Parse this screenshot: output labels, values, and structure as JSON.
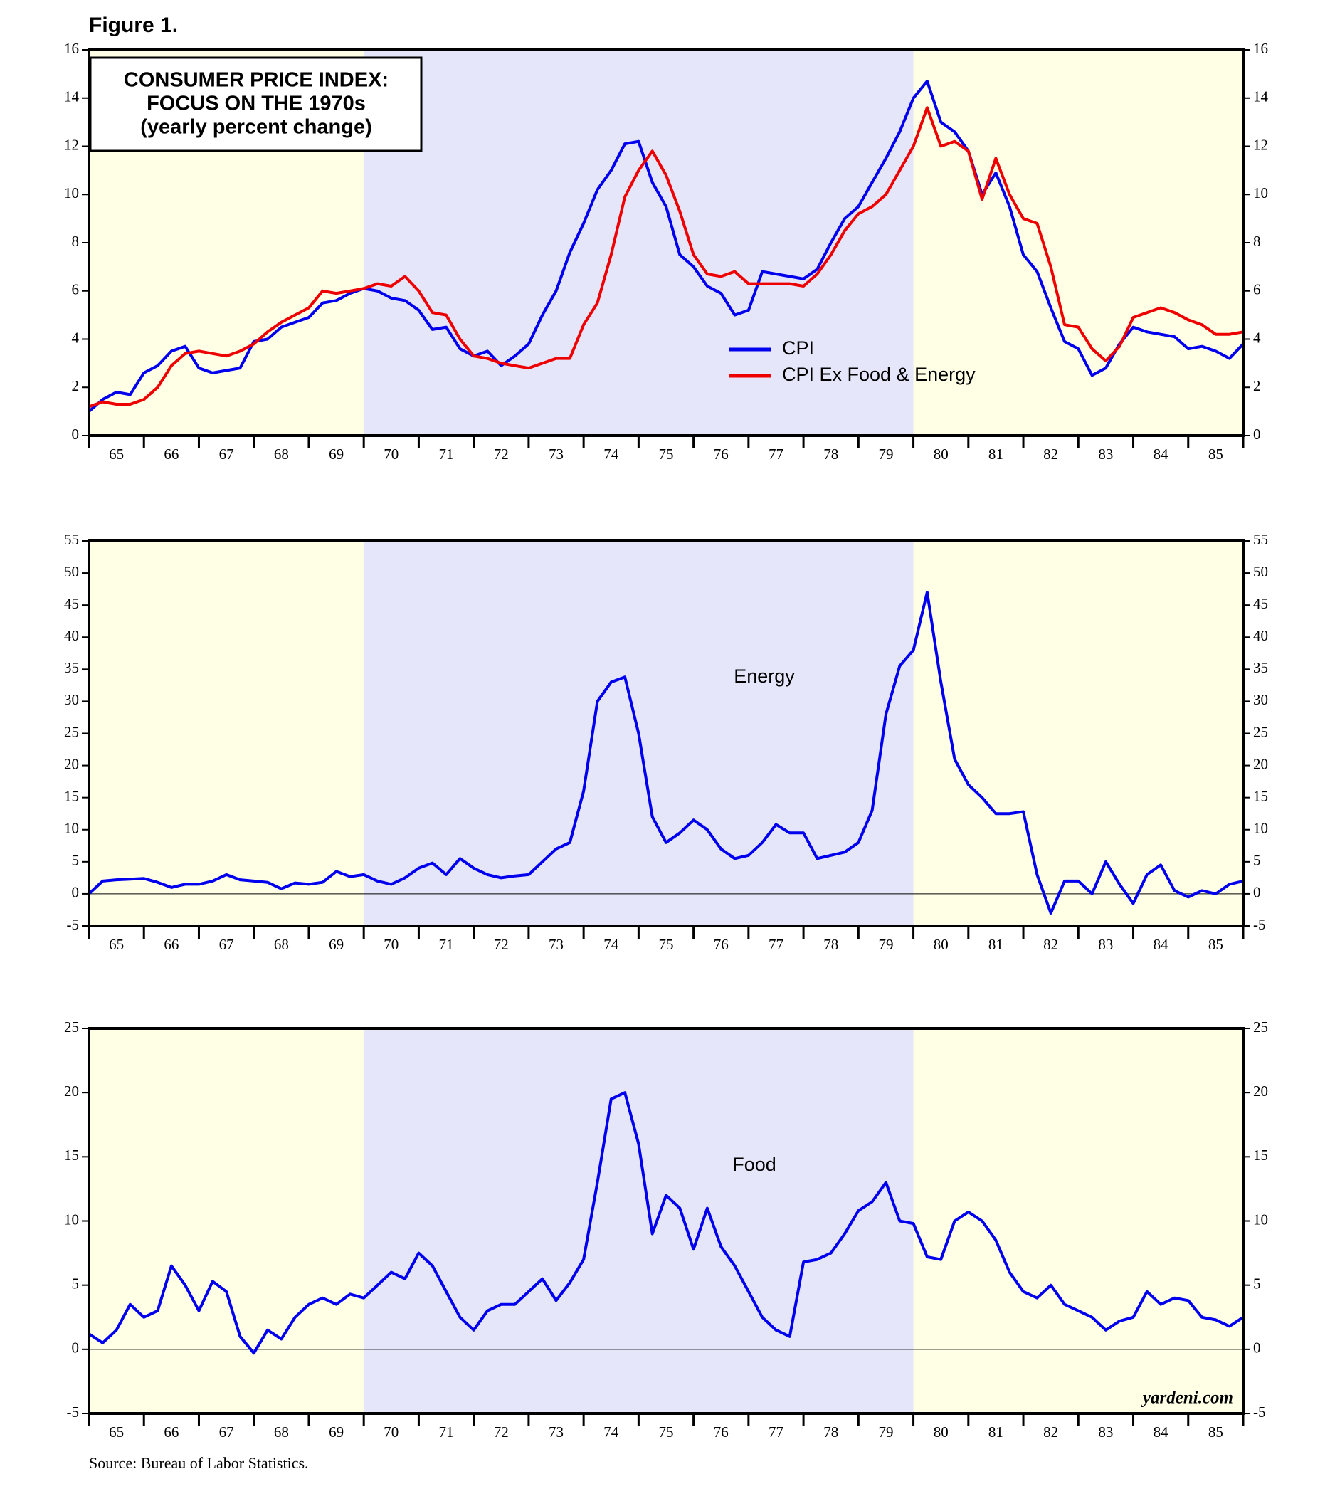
{
  "figure_label": "Figure 1.",
  "source": "Source: Bureau of Labor Statistics.",
  "watermark": "yardeni.com",
  "chart_data": [
    {
      "type": "line",
      "title": [
        "CONSUMER PRICE INDEX:",
        "FOCUS ON THE 1970s",
        "(yearly percent change)"
      ],
      "background_color": "#ffffe6",
      "shaded_spans": [
        {
          "from": 1970,
          "to": 1980,
          "color": "#e6e6fa"
        }
      ],
      "legend": "center-right",
      "xlim": [
        1965,
        1986
      ],
      "xticks": [
        {
          "value": 1965.5,
          "label": "65"
        },
        {
          "value": 1966.5,
          "label": "66"
        },
        {
          "value": 1967.5,
          "label": "67"
        },
        {
          "value": 1968.5,
          "label": "68"
        },
        {
          "value": 1969.5,
          "label": "69"
        },
        {
          "value": 1970.5,
          "label": "70"
        },
        {
          "value": 1971.5,
          "label": "71"
        },
        {
          "value": 1972.5,
          "label": "72"
        },
        {
          "value": 1973.5,
          "label": "73"
        },
        {
          "value": 1974.5,
          "label": "74"
        },
        {
          "value": 1975.5,
          "label": "75"
        },
        {
          "value": 1976.5,
          "label": "76"
        },
        {
          "value": 1977.5,
          "label": "77"
        },
        {
          "value": 1978.5,
          "label": "78"
        },
        {
          "value": 1979.5,
          "label": "79"
        },
        {
          "value": 1980.5,
          "label": "80"
        },
        {
          "value": 1981.5,
          "label": "81"
        },
        {
          "value": 1982.5,
          "label": "82"
        },
        {
          "value": 1983.5,
          "label": "83"
        },
        {
          "value": 1984.5,
          "label": "84"
        },
        {
          "value": 1985.5,
          "label": "85"
        }
      ],
      "ylim": [
        0,
        16
      ],
      "yticks": [
        0,
        2,
        4,
        6,
        8,
        10,
        12,
        14,
        16
      ],
      "x": [
        1965,
        1965.25,
        1965.5,
        1965.75,
        1966,
        1966.25,
        1966.5,
        1966.75,
        1967,
        1967.25,
        1967.5,
        1967.75,
        1968,
        1968.25,
        1968.5,
        1968.75,
        1969,
        1969.25,
        1969.5,
        1969.75,
        1970,
        1970.25,
        1970.5,
        1970.75,
        1971,
        1971.25,
        1971.5,
        1971.75,
        1972,
        1972.25,
        1972.5,
        1972.75,
        1973,
        1973.25,
        1973.5,
        1973.75,
        1974,
        1974.25,
        1974.5,
        1974.75,
        1975,
        1975.25,
        1975.5,
        1975.75,
        1976,
        1976.25,
        1976.5,
        1976.75,
        1977,
        1977.25,
        1977.5,
        1977.75,
        1978,
        1978.25,
        1978.5,
        1978.75,
        1979,
        1979.25,
        1979.5,
        1979.75,
        1980,
        1980.25,
        1980.5,
        1980.75,
        1981,
        1981.25,
        1981.5,
        1981.75,
        1982,
        1982.25,
        1982.5,
        1982.75,
        1983,
        1983.25,
        1983.5,
        1983.75,
        1984,
        1984.25,
        1984.5,
        1984.75,
        1985,
        1985.25,
        1985.5,
        1985.75,
        1986
      ],
      "series": [
        {
          "name": "CPI",
          "color": "#0000ee",
          "values": [
            1.0,
            1.5,
            1.8,
            1.7,
            2.6,
            2.9,
            3.5,
            3.7,
            2.8,
            2.6,
            2.7,
            2.8,
            3.9,
            4.0,
            4.5,
            4.7,
            4.9,
            5.5,
            5.6,
            5.9,
            6.1,
            6.0,
            5.7,
            5.6,
            5.2,
            4.4,
            4.5,
            3.6,
            3.3,
            3.5,
            2.9,
            3.3,
            3.8,
            5.0,
            6.0,
            7.6,
            8.8,
            10.2,
            11.0,
            12.1,
            12.2,
            10.5,
            9.5,
            7.5,
            7.0,
            6.2,
            5.9,
            5.0,
            5.2,
            6.8,
            6.7,
            6.6,
            6.5,
            6.9,
            8.0,
            9.0,
            9.5,
            10.5,
            11.5,
            12.6,
            14.0,
            14.7,
            13.0,
            12.6,
            11.8,
            10.0,
            10.9,
            9.5,
            7.5,
            6.8,
            5.3,
            3.9,
            3.6,
            2.5,
            2.8,
            3.8,
            4.5,
            4.3,
            4.2,
            4.1,
            3.6,
            3.7,
            3.5,
            3.2,
            3.8
          ]
        },
        {
          "name": "CPI Ex Food & Energy",
          "color": "#ee0000",
          "values": [
            1.2,
            1.4,
            1.3,
            1.3,
            1.5,
            2.0,
            2.9,
            3.4,
            3.5,
            3.4,
            3.3,
            3.5,
            3.8,
            4.3,
            4.7,
            5.0,
            5.3,
            6.0,
            5.9,
            6.0,
            6.1,
            6.3,
            6.2,
            6.6,
            6.0,
            5.1,
            5.0,
            4.0,
            3.3,
            3.2,
            3.0,
            2.9,
            2.8,
            3.0,
            3.2,
            3.2,
            4.6,
            5.5,
            7.5,
            9.9,
            11.0,
            11.8,
            10.8,
            9.3,
            7.5,
            6.7,
            6.6,
            6.8,
            6.3,
            6.3,
            6.3,
            6.3,
            6.2,
            6.7,
            7.5,
            8.5,
            9.2,
            9.5,
            10.0,
            11.0,
            12.0,
            13.6,
            12.0,
            12.2,
            11.8,
            9.8,
            11.5,
            10.0,
            9.0,
            8.8,
            7.0,
            4.6,
            4.5,
            3.6,
            3.1,
            3.7,
            4.9,
            5.1,
            5.3,
            5.1,
            4.8,
            4.6,
            4.2,
            4.2,
            4.3
          ]
        }
      ]
    },
    {
      "type": "line",
      "annotation": "Energy",
      "background_color": "#ffffe6",
      "shaded_spans": [
        {
          "from": 1970,
          "to": 1980,
          "color": "#e6e6fa"
        }
      ],
      "zero_line": true,
      "xlim": [
        1965,
        1986
      ],
      "xticks": [
        {
          "value": 1965.5,
          "label": "65"
        },
        {
          "value": 1966.5,
          "label": "66"
        },
        {
          "value": 1967.5,
          "label": "67"
        },
        {
          "value": 1968.5,
          "label": "68"
        },
        {
          "value": 1969.5,
          "label": "69"
        },
        {
          "value": 1970.5,
          "label": "70"
        },
        {
          "value": 1971.5,
          "label": "71"
        },
        {
          "value": 1972.5,
          "label": "72"
        },
        {
          "value": 1973.5,
          "label": "73"
        },
        {
          "value": 1974.5,
          "label": "74"
        },
        {
          "value": 1975.5,
          "label": "75"
        },
        {
          "value": 1976.5,
          "label": "76"
        },
        {
          "value": 1977.5,
          "label": "77"
        },
        {
          "value": 1978.5,
          "label": "78"
        },
        {
          "value": 1979.5,
          "label": "79"
        },
        {
          "value": 1980.5,
          "label": "80"
        },
        {
          "value": 1981.5,
          "label": "81"
        },
        {
          "value": 1982.5,
          "label": "82"
        },
        {
          "value": 1983.5,
          "label": "83"
        },
        {
          "value": 1984.5,
          "label": "84"
        },
        {
          "value": 1985.5,
          "label": "85"
        }
      ],
      "ylim": [
        -5,
        55
      ],
      "yticks": [
        -5,
        0,
        5,
        10,
        15,
        20,
        25,
        30,
        35,
        40,
        45,
        50,
        55
      ],
      "x": [
        1965,
        1965.25,
        1965.5,
        1965.75,
        1966,
        1966.25,
        1966.5,
        1966.75,
        1967,
        1967.25,
        1967.5,
        1967.75,
        1968,
        1968.25,
        1968.5,
        1968.75,
        1969,
        1969.25,
        1969.5,
        1969.75,
        1970,
        1970.25,
        1970.5,
        1970.75,
        1971,
        1971.25,
        1971.5,
        1971.75,
        1972,
        1972.25,
        1972.5,
        1972.75,
        1973,
        1973.25,
        1973.5,
        1973.75,
        1974,
        1974.25,
        1974.5,
        1974.75,
        1975,
        1975.25,
        1975.5,
        1975.75,
        1976,
        1976.25,
        1976.5,
        1976.75,
        1977,
        1977.25,
        1977.5,
        1977.75,
        1978,
        1978.25,
        1978.5,
        1978.75,
        1979,
        1979.25,
        1979.5,
        1979.75,
        1980,
        1980.25,
        1980.5,
        1980.75,
        1981,
        1981.25,
        1981.5,
        1981.75,
        1982,
        1982.25,
        1982.5,
        1982.75,
        1983,
        1983.25,
        1983.5,
        1983.75,
        1984,
        1984.25,
        1984.5,
        1984.75,
        1985,
        1985.25,
        1985.5,
        1985.75,
        1986
      ],
      "series": [
        {
          "color": "#0000ee",
          "values": [
            0.0,
            2.0,
            2.2,
            2.3,
            2.4,
            1.8,
            1.0,
            1.5,
            1.5,
            2.0,
            3.0,
            2.2,
            2.0,
            1.8,
            0.8,
            1.7,
            1.5,
            1.8,
            3.5,
            2.7,
            3.0,
            2.0,
            1.5,
            2.5,
            4.0,
            4.8,
            3.0,
            5.5,
            4.0,
            3.0,
            2.5,
            2.8,
            3.0,
            5.0,
            7.0,
            8.0,
            16.0,
            30.0,
            33.0,
            33.8,
            25.0,
            12.0,
            8.0,
            9.5,
            11.5,
            10.0,
            7.0,
            5.5,
            6.0,
            8.0,
            10.8,
            9.5,
            9.5,
            5.5,
            6.0,
            6.5,
            8.0,
            13.0,
            28.0,
            35.5,
            38.0,
            47.0,
            33.0,
            21.0,
            17.0,
            15.0,
            12.5,
            12.5,
            12.8,
            3.0,
            -3.0,
            2.0,
            2.0,
            0.0,
            5.0,
            1.5,
            -1.5,
            3.0,
            4.5,
            0.5,
            -0.5,
            0.5,
            0.0,
            1.5,
            2.0
          ]
        }
      ]
    },
    {
      "type": "line",
      "annotation": "Food",
      "background_color": "#ffffe6",
      "shaded_spans": [
        {
          "from": 1970,
          "to": 1980,
          "color": "#e6e6fa"
        }
      ],
      "zero_line": true,
      "xlim": [
        1965,
        1986
      ],
      "xticks": [
        {
          "value": 1965.5,
          "label": "65"
        },
        {
          "value": 1966.5,
          "label": "66"
        },
        {
          "value": 1967.5,
          "label": "67"
        },
        {
          "value": 1968.5,
          "label": "68"
        },
        {
          "value": 1969.5,
          "label": "69"
        },
        {
          "value": 1970.5,
          "label": "70"
        },
        {
          "value": 1971.5,
          "label": "71"
        },
        {
          "value": 1972.5,
          "label": "72"
        },
        {
          "value": 1973.5,
          "label": "73"
        },
        {
          "value": 1974.5,
          "label": "74"
        },
        {
          "value": 1975.5,
          "label": "75"
        },
        {
          "value": 1976.5,
          "label": "76"
        },
        {
          "value": 1977.5,
          "label": "77"
        },
        {
          "value": 1978.5,
          "label": "78"
        },
        {
          "value": 1979.5,
          "label": "79"
        },
        {
          "value": 1980.5,
          "label": "80"
        },
        {
          "value": 1981.5,
          "label": "81"
        },
        {
          "value": 1982.5,
          "label": "82"
        },
        {
          "value": 1983.5,
          "label": "83"
        },
        {
          "value": 1984.5,
          "label": "84"
        },
        {
          "value": 1985.5,
          "label": "85"
        }
      ],
      "ylim": [
        -5,
        25
      ],
      "yticks": [
        -5,
        0,
        5,
        10,
        15,
        20,
        25
      ],
      "x": [
        1965,
        1965.25,
        1965.5,
        1965.75,
        1966,
        1966.25,
        1966.5,
        1966.75,
        1967,
        1967.25,
        1967.5,
        1967.75,
        1968,
        1968.25,
        1968.5,
        1968.75,
        1969,
        1969.25,
        1969.5,
        1969.75,
        1970,
        1970.25,
        1970.5,
        1970.75,
        1971,
        1971.25,
        1971.5,
        1971.75,
        1972,
        1972.25,
        1972.5,
        1972.75,
        1973,
        1973.25,
        1973.5,
        1973.75,
        1974,
        1974.25,
        1974.5,
        1974.75,
        1975,
        1975.25,
        1975.5,
        1975.75,
        1976,
        1976.25,
        1976.5,
        1976.75,
        1977,
        1977.25,
        1977.5,
        1977.75,
        1978,
        1978.25,
        1978.5,
        1978.75,
        1979,
        1979.25,
        1979.5,
        1979.75,
        1980,
        1980.25,
        1980.5,
        1980.75,
        1981,
        1981.25,
        1981.5,
        1981.75,
        1982,
        1982.25,
        1982.5,
        1982.75,
        1983,
        1983.25,
        1983.5,
        1983.75,
        1984,
        1984.25,
        1984.5,
        1984.75,
        1985,
        1985.25,
        1985.5,
        1985.75,
        1986
      ],
      "series": [
        {
          "color": "#0000ee",
          "values": [
            1.2,
            0.5,
            1.5,
            3.5,
            2.5,
            3.0,
            6.5,
            5.0,
            3.0,
            5.3,
            4.5,
            1.0,
            -0.3,
            1.5,
            0.8,
            2.5,
            3.5,
            4.0,
            3.5,
            4.3,
            4.0,
            5.0,
            6.0,
            5.5,
            7.5,
            6.5,
            4.5,
            2.5,
            1.5,
            3.0,
            3.5,
            3.5,
            4.5,
            5.5,
            3.8,
            5.2,
            7.0,
            13.0,
            19.5,
            20.0,
            16.0,
            9.0,
            12.0,
            11.0,
            7.8,
            11.0,
            8.0,
            6.5,
            4.5,
            2.5,
            1.5,
            1.0,
            6.8,
            7.0,
            7.5,
            9.0,
            10.8,
            11.5,
            13.0,
            10.0,
            9.8,
            7.2,
            7.0,
            10.0,
            10.7,
            10.0,
            8.5,
            6.0,
            4.5,
            4.0,
            5.0,
            3.5,
            3.0,
            2.5,
            1.5,
            2.2,
            2.5,
            4.5,
            3.5,
            4.0,
            3.8,
            2.5,
            2.3,
            1.8,
            2.5
          ]
        }
      ]
    }
  ]
}
